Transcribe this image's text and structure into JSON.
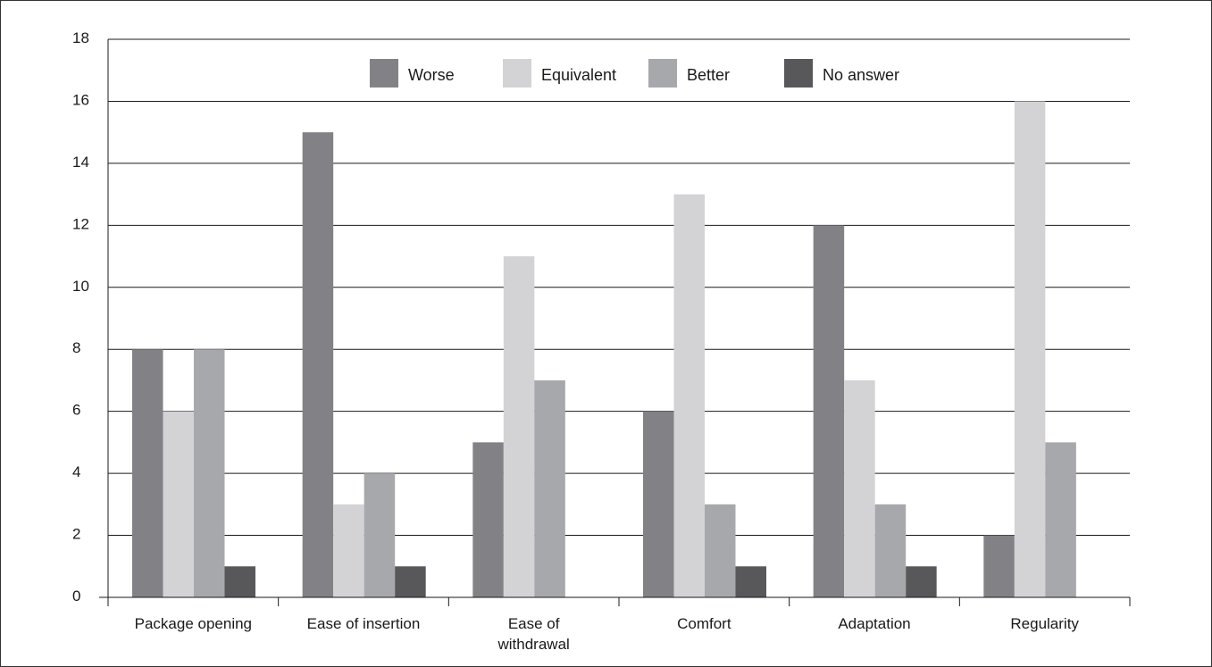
{
  "chart_data": {
    "type": "bar",
    "title": "",
    "xlabel": "",
    "ylabel": "",
    "ylim": [
      0,
      18
    ],
    "yticks": [
      0,
      2,
      4,
      6,
      8,
      10,
      12,
      14,
      16,
      18
    ],
    "grid": "horizontal",
    "legend_position": "top-center",
    "categories": [
      [
        "Package opening"
      ],
      [
        "Ease of insertion"
      ],
      [
        "Ease of",
        "withdrawal"
      ],
      [
        "Comfort"
      ],
      [
        "Adaptation"
      ],
      [
        "Regularity"
      ]
    ],
    "series": [
      {
        "name": "Worse",
        "color": "#828286",
        "values": [
          8,
          15,
          5,
          6,
          12,
          2
        ]
      },
      {
        "name": "Equivalent",
        "color": "#d3d3d5",
        "values": [
          6,
          3,
          11,
          13,
          7,
          16
        ]
      },
      {
        "name": "Better",
        "color": "#a7a8ab",
        "values": [
          8,
          4,
          7,
          3,
          3,
          5
        ]
      },
      {
        "name": "No answer",
        "color": "#58585a",
        "values": [
          1,
          1,
          0,
          1,
          1,
          0
        ]
      }
    ]
  }
}
